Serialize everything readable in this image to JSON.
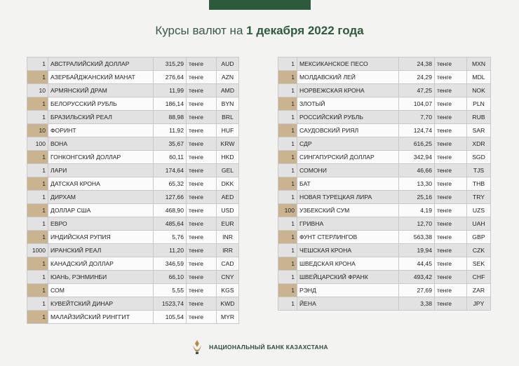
{
  "header": {
    "title_prefix": "Курсы валют на",
    "title_date": "1 декабря 2022 года"
  },
  "tables": [
    {
      "rows": [
        [
          "1",
          "АВСТРАЛИЙСКИЙ ДОЛЛАР",
          "315,29",
          "тенге",
          "AUD"
        ],
        [
          "1",
          "АЗЕРБАЙДЖАНСКИЙ МАНАТ",
          "276,64",
          "тенге",
          "AZN"
        ],
        [
          "10",
          "АРМЯНСКИЙ ДРАМ",
          "11,99",
          "тенге",
          "AMD"
        ],
        [
          "1",
          "БЕЛОРУССКИЙ РУБЛЬ",
          "186,14",
          "тенге",
          "BYN"
        ],
        [
          "1",
          "БРАЗИЛЬСКИЙ РЕАЛ",
          "88,98",
          "тенге",
          "BRL"
        ],
        [
          "10",
          "ФОРИНТ",
          "11,92",
          "тенге",
          "HUF"
        ],
        [
          "100",
          "ВОНА",
          "35,67",
          "тенге",
          "KRW"
        ],
        [
          "1",
          "ГОНКОНГСКИЙ ДОЛЛАР",
          "60,11",
          "тенге",
          "HKD"
        ],
        [
          "1",
          "ЛАРИ",
          "174,64",
          "тенге",
          "GEL"
        ],
        [
          "1",
          "ДАТСКАЯ КРОНА",
          "65,32",
          "тенге",
          "DKK"
        ],
        [
          "1",
          "ДИРХАМ",
          "127,66",
          "тенге",
          "AED"
        ],
        [
          "1",
          "ДОЛЛАР США",
          "468,90",
          "тенге",
          "USD"
        ],
        [
          "1",
          "ЕВРО",
          "485,64",
          "тенге",
          "EUR"
        ],
        [
          "1",
          "ИНДИЙСКАЯ РУПИЯ",
          "5,76",
          "тенге",
          "INR"
        ],
        [
          "1000",
          "ИРАНСКИЙ РЕАЛ",
          "11,20",
          "тенге",
          "IRR"
        ],
        [
          "1",
          "КАНАДСКИЙ ДОЛЛАР",
          "346,59",
          "тенге",
          "CAD"
        ],
        [
          "1",
          "ЮАНЬ, РЭНМИНБИ",
          "66,10",
          "тенге",
          "CNY"
        ],
        [
          "1",
          "СОМ",
          "5,55",
          "тенге",
          "KGS"
        ],
        [
          "1",
          "КУВЕЙТСКИЙ ДИНАР",
          "1523,74",
          "тенге",
          "KWD"
        ],
        [
          "1",
          "МАЛАЙЗИЙСКИЙ РИНГГИТ",
          "105,54",
          "тенге",
          "MYR"
        ]
      ]
    },
    {
      "rows": [
        [
          "1",
          "МЕКСИКАНСКОЕ ПЕСО",
          "24,38",
          "тенге",
          "MXN"
        ],
        [
          "1",
          "МОЛДАВСКИЙ ЛЕЙ",
          "24,29",
          "тенге",
          "MDL"
        ],
        [
          "1",
          "НОРВЕЖСКАЯ КРОНА",
          "47,25",
          "тенге",
          "NOK"
        ],
        [
          "1",
          "ЗЛОТЫЙ",
          "104,07",
          "тенге",
          "PLN"
        ],
        [
          "1",
          "РОССИЙСКИЙ РУБЛЬ",
          "7,70",
          "тенге",
          "RUB"
        ],
        [
          "1",
          "САУДОВСКИЙ РИЯЛ",
          "124,74",
          "тенге",
          "SAR"
        ],
        [
          "1",
          "СДР",
          "616,25",
          "тенге",
          "XDR"
        ],
        [
          "1",
          "СИНГАПУРСКИЙ ДОЛЛАР",
          "342,94",
          "тенге",
          "SGD"
        ],
        [
          "1",
          "СОМОНИ",
          "46,66",
          "тенге",
          "TJS"
        ],
        [
          "1",
          "БАТ",
          "13,30",
          "тенге",
          "THB"
        ],
        [
          "1",
          "НОВАЯ ТУРЕЦКАЯ ЛИРА",
          "25,16",
          "тенге",
          "TRY"
        ],
        [
          "100",
          "УЗБЕКСКИЙ СУМ",
          "4,19",
          "тенге",
          "UZS"
        ],
        [
          "1",
          "ГРИВНА",
          "12,70",
          "тенге",
          "UAH"
        ],
        [
          "1",
          "ФУНТ СТЕРЛИНГОВ",
          "563,38",
          "тенге",
          "GBP"
        ],
        [
          "1",
          "ЧЕШСКАЯ КРОНА",
          "19,94",
          "тенге",
          "CZK"
        ],
        [
          "1",
          "ШВЕДСКАЯ КРОНА",
          "44,45",
          "тенге",
          "SEK"
        ],
        [
          "1",
          "ШВЕЙЦАРСКИЙ ФРАНК",
          "493,42",
          "тенге",
          "CHF"
        ],
        [
          "1",
          "РЭНД",
          "27,69",
          "тенге",
          "ZAR"
        ],
        [
          "1",
          "ЙЕНА",
          "3,38",
          "тенге",
          "JPY"
        ]
      ]
    }
  ],
  "footer": {
    "bank": "НАЦИОНАЛЬНЫЙ БАНК КАЗАХСТАНА"
  }
}
